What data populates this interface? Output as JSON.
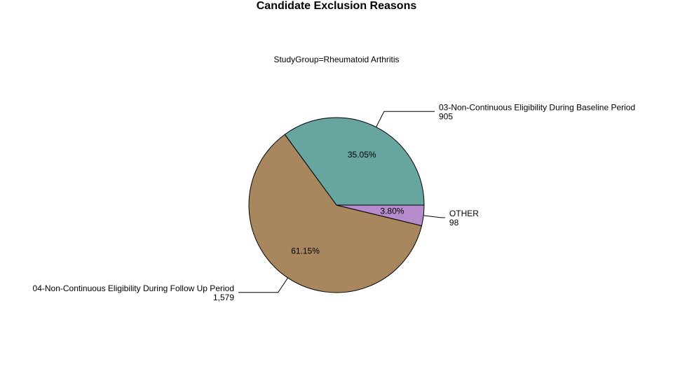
{
  "chart_data": {
    "type": "pie",
    "title": "Candidate Exclusion Reasons",
    "subtitle": "StudyGroup=Rheumatoid Arthritis",
    "categories": [
      "03-Non-Continuous Eligibility During Baseline Period",
      "04-Non-Continuous Eligibility During Follow Up Period",
      "OTHER"
    ],
    "values": [
      905,
      1579,
      98
    ],
    "value_labels": [
      "905",
      "1,579",
      "98"
    ],
    "percentages": [
      35.05,
      61.15,
      3.8
    ],
    "percentage_labels": [
      "35.05%",
      "61.15%",
      "3.80%"
    ],
    "colors": [
      "#66a5a0",
      "#a8865e",
      "#b68bcc"
    ]
  }
}
